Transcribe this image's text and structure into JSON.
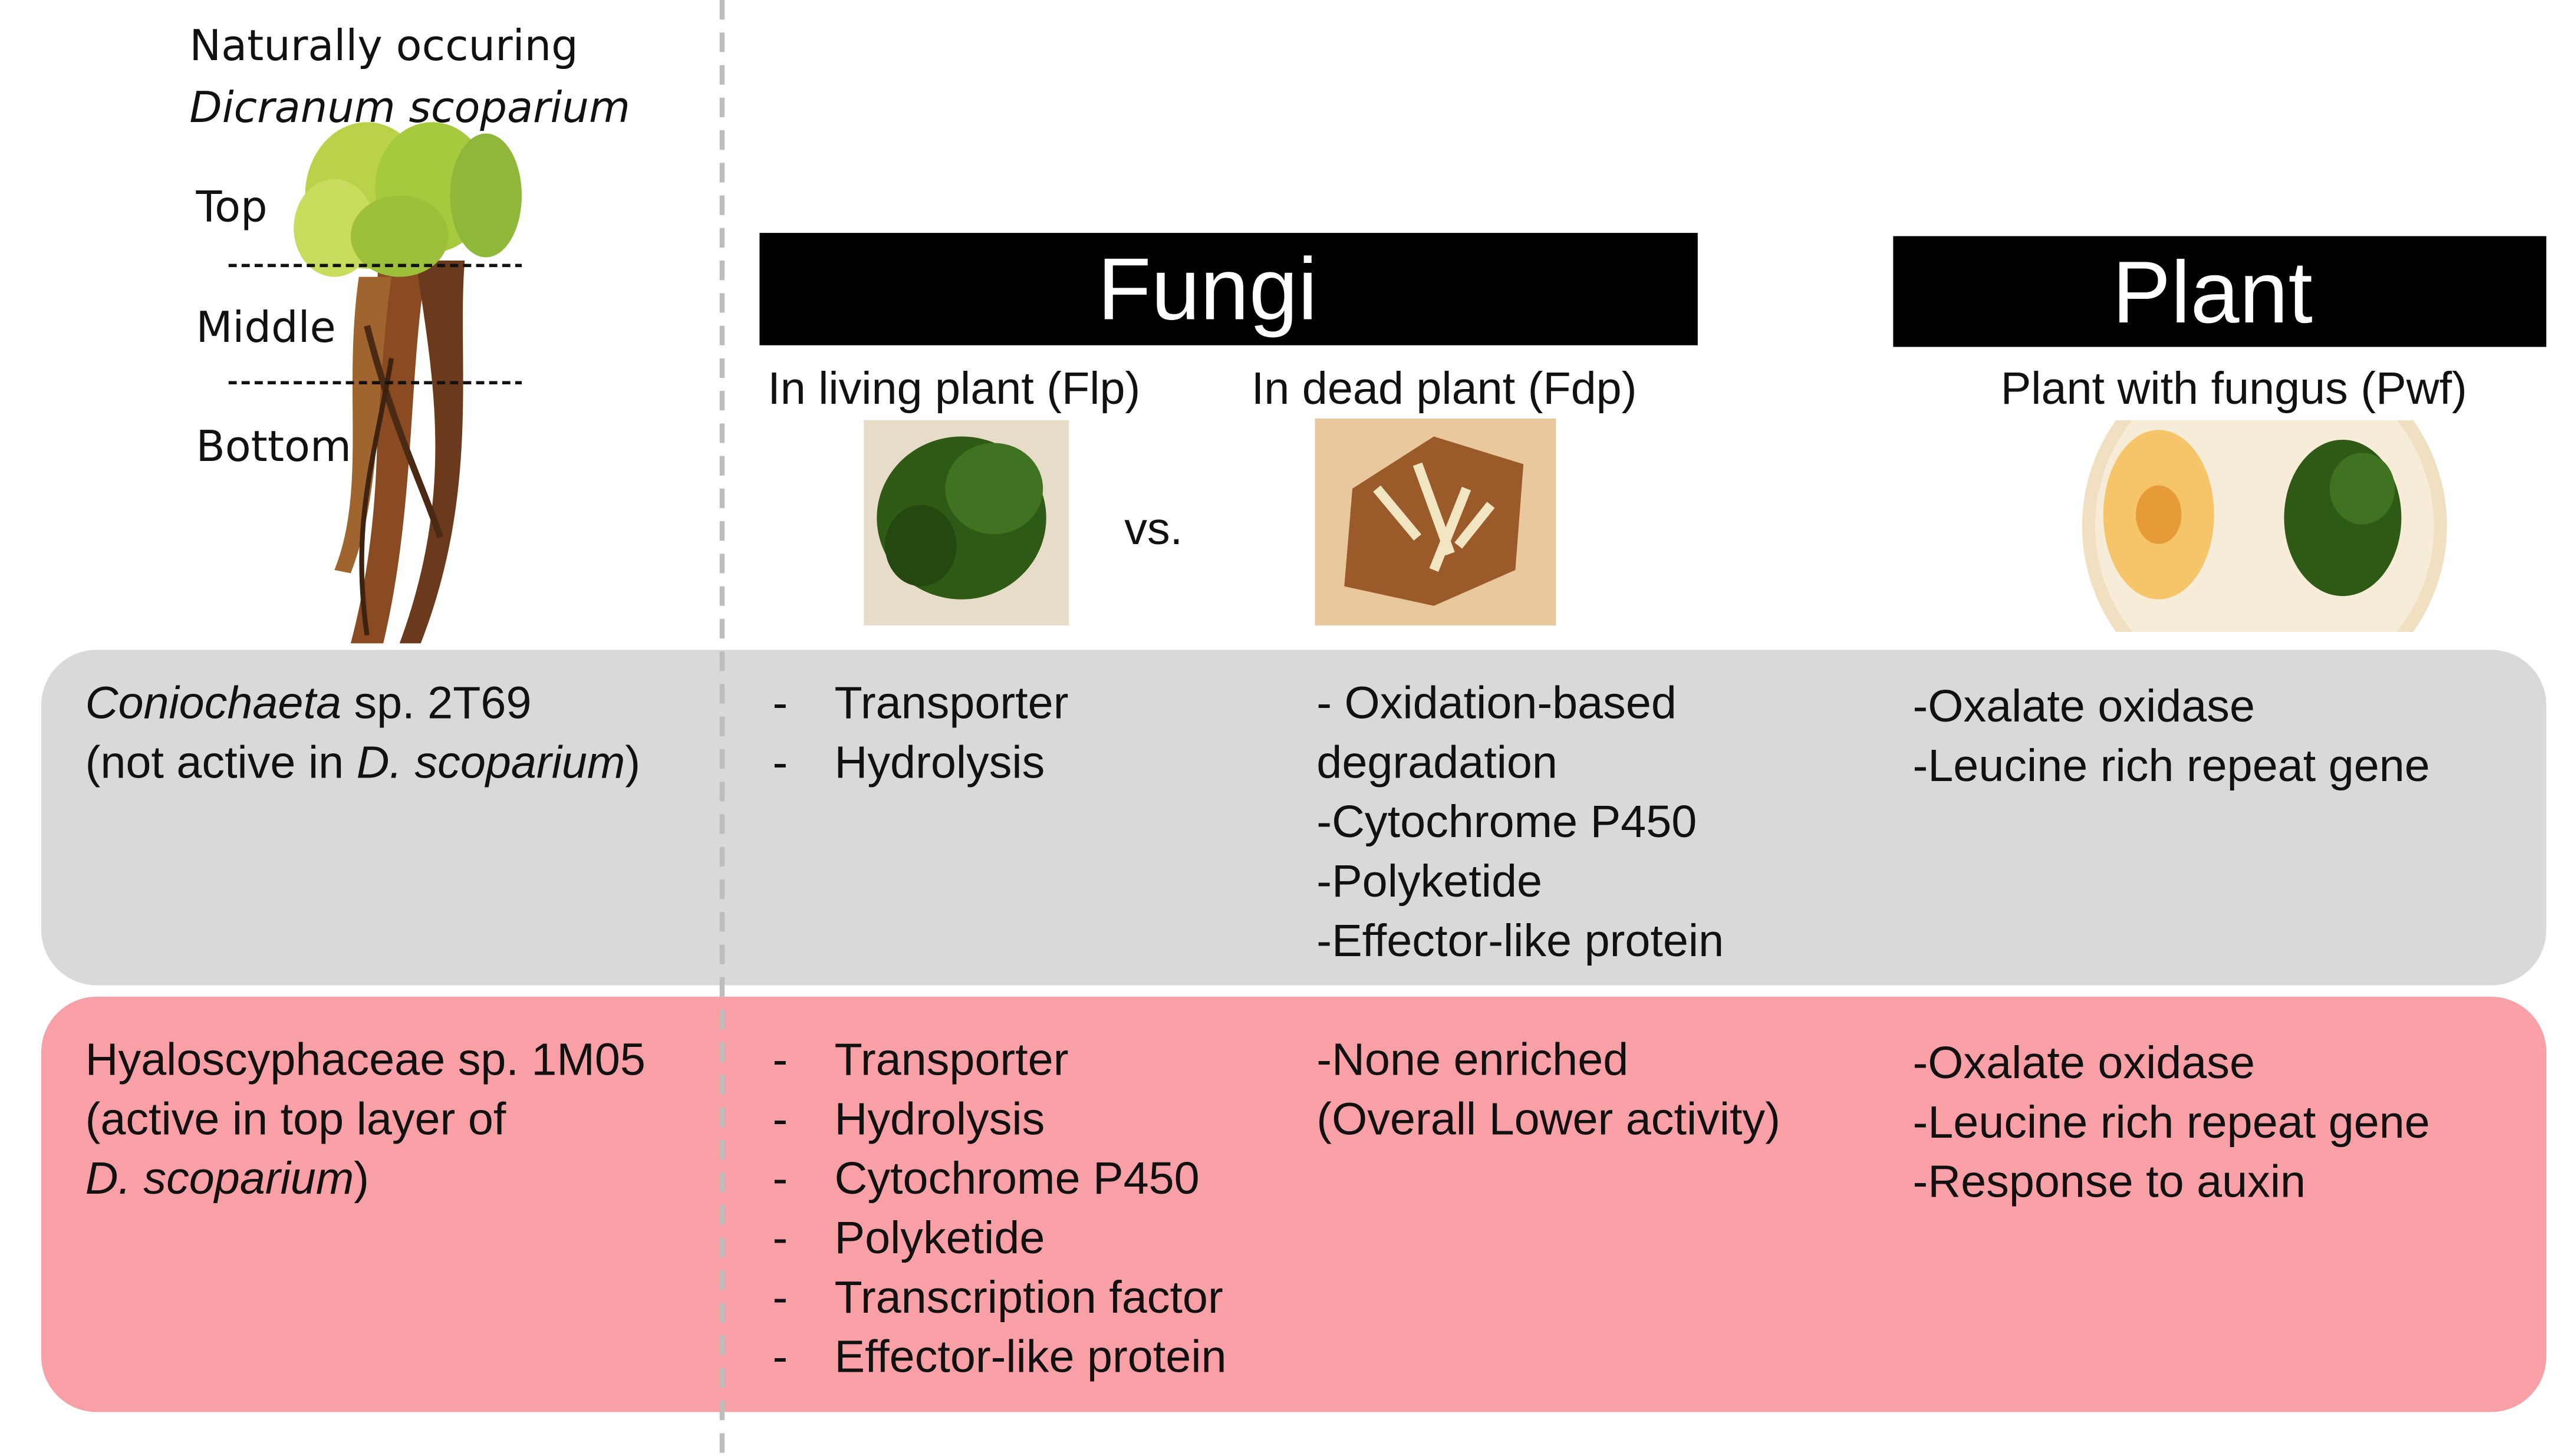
{
  "header": {
    "line1": "Naturally occuring",
    "line2": "Dicranum scoparium"
  },
  "layers": [
    "Top",
    "Middle",
    "Bottom"
  ],
  "fungi": {
    "title": "Fungi",
    "living": "In living plant (Flp)",
    "vs": "vs.",
    "dead": "In dead plant (Fdp)"
  },
  "plant": {
    "title": "Plant",
    "label": "Plant with fungus (Pwf)"
  },
  "rows": [
    {
      "name": [
        [
          {
            "text": "Coniochaeta",
            "italic": true
          },
          {
            "text": " sp. 2T69"
          }
        ],
        [
          {
            "text": "(not active in "
          },
          {
            "text": "D. scoparium",
            "italic": true
          },
          {
            "text": ")"
          }
        ]
      ],
      "flp": [
        "Transporter",
        "Hydrolysis"
      ],
      "fdp": [
        "- Oxidation-based",
        "degradation",
        "-Cytochrome P450",
        "-Polyketide",
        "-Effector-like protein"
      ],
      "pwf": [
        "-Oxalate oxidase",
        "-Leucine rich repeat gene"
      ]
    },
    {
      "name": [
        [
          {
            "text": "Hyaloscyphaceae sp. 1M05"
          }
        ],
        [
          {
            "text": "(active in top layer of"
          }
        ],
        [
          {
            "text": "D. scoparium",
            "italic": true
          },
          {
            "text": ")"
          }
        ]
      ],
      "flp": [
        "Transporter",
        "Hydrolysis",
        "Cytochrome P450",
        "Polyketide",
        "Transcription factor",
        "Effector-like protein"
      ],
      "fdp": [
        "-None enriched",
        "(Overall Lower activity)"
      ],
      "pwf": [
        "-Oxalate oxidase",
        "-Leucine rich repeat gene",
        "-Response to auxin"
      ]
    }
  ]
}
